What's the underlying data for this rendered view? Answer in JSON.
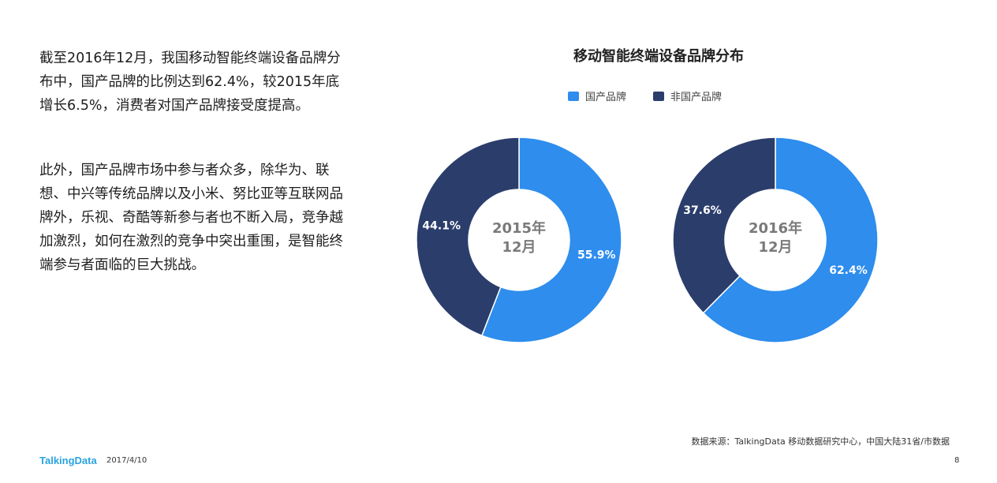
{
  "text": {
    "para1": "截至2016年12月，我国移动智能终端设备品牌分布中，国产品牌的比例达到62.4%，较2015年底增长6.5%，消费者对国产品牌接受度提高。",
    "para2": "此外，国产品牌市场中参与者众多，除华为、联想、中兴等传统品牌以及小米、努比亚等互联网品牌外，乐视、奇酷等新参与者也不断入局，竞争越加激烈，如何在激烈的竞争中突出重围，是智能终端参与者面临的巨大挑战。"
  },
  "colors": {
    "domestic": "#2e8ded",
    "foreign": "#2b3d6b"
  },
  "chart_data": [
    {
      "type": "pie",
      "title": "移动智能终端设备品牌分布",
      "center_label": [
        "2015年",
        "12月"
      ],
      "categories": [
        "国产品牌",
        "非国产品牌"
      ],
      "values": [
        55.9,
        44.1
      ],
      "value_labels": [
        "55.9%",
        "44.1%"
      ],
      "legend": "top"
    },
    {
      "type": "pie",
      "title": "移动智能终端设备品牌分布",
      "center_label": [
        "2016年",
        "12月"
      ],
      "categories": [
        "国产品牌",
        "非国产品牌"
      ],
      "values": [
        62.4,
        37.6
      ],
      "value_labels": [
        "62.4%",
        "37.6%"
      ],
      "legend": "top"
    }
  ],
  "chart_title": "移动智能终端设备品牌分布",
  "legend": [
    "国产品牌",
    "非国产品牌"
  ],
  "footer": {
    "source": "数据来源：TalkingData 移动数据研究中心，中国大陆31省/市数据",
    "logo": "TalkingData",
    "date": "2017/4/10",
    "page": "8"
  }
}
